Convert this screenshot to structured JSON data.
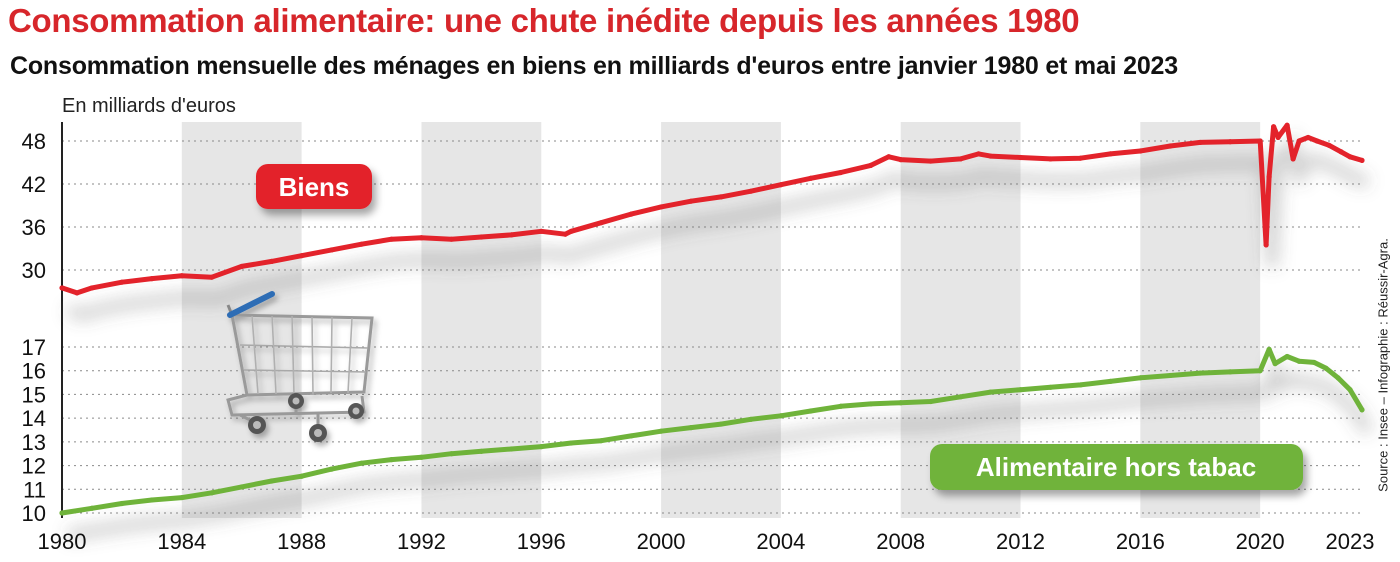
{
  "title": "Consommation alimentaire: une chute inédite depuis les années 1980",
  "subtitle": "Consommation mensuelle des ménages en biens en milliards d'euros entre janvier 1980 et mai 2023",
  "unit_label": "En milliards d'euros",
  "source": "Source : Insee – Infographie : Réussir-Agra.",
  "colors": {
    "biens": "#e3232b",
    "alimentaire": "#6fb33a",
    "title": "#d7262b",
    "band": "#e6e6e6"
  },
  "icons": {
    "cart": "shopping-cart-icon"
  },
  "chart_data": {
    "type": "line",
    "x_ticks": [
      "1980",
      "1984",
      "1988",
      "1992",
      "1996",
      "2000",
      "2004",
      "2008",
      "2012",
      "2016",
      "2020",
      "2023"
    ],
    "x_range": [
      1980,
      2023.4
    ],
    "panels": [
      {
        "name": "Biens",
        "y_ticks": [
          30,
          36,
          42,
          48
        ],
        "ylim": [
          26,
          51
        ],
        "series": [
          {
            "name": "Biens",
            "x": [
              1980.0,
              1980.5,
              1981,
              1982,
              1983,
              1984,
              1985,
              1986,
              1987,
              1988,
              1989,
              1990,
              1991,
              1992,
              1993,
              1994,
              1995,
              1996,
              1996.8,
              1997,
              1998,
              1999,
              2000,
              2001,
              2002,
              2003,
              2004,
              2005,
              2006,
              2007,
              2007.6,
              2008,
              2009,
              2010,
              2010.6,
              2011,
              2012,
              2013,
              2014,
              2015,
              2016,
              2017,
              2018,
              2019,
              2020.0,
              2020.2,
              2020.3,
              2020.45,
              2020.6,
              2020.9,
              2021.1,
              2021.3,
              2021.6,
              2021.9,
              2022.3,
              2022.7,
              2023.0,
              2023.4
            ],
            "values": [
              27.5,
              26.8,
              27.5,
              28.3,
              28.8,
              29.2,
              29.0,
              30.5,
              31.2,
              32.0,
              32.8,
              33.6,
              34.3,
              34.5,
              34.3,
              34.6,
              34.9,
              35.4,
              35.0,
              35.4,
              36.6,
              37.8,
              38.8,
              39.6,
              40.2,
              41.0,
              41.9,
              42.8,
              43.6,
              44.6,
              45.8,
              45.4,
              45.2,
              45.5,
              46.2,
              45.9,
              45.7,
              45.5,
              45.6,
              46.2,
              46.6,
              47.3,
              47.8,
              47.9,
              48.0,
              33.5,
              43.0,
              50.0,
              48.5,
              50.2,
              45.5,
              48.0,
              48.5,
              48.0,
              47.4,
              46.5,
              45.8,
              45.3
            ]
          }
        ]
      },
      {
        "name": "Alimentaire hors tabac",
        "y_ticks": [
          10,
          11,
          12,
          13,
          14,
          15,
          16,
          17
        ],
        "ylim": [
          10,
          18
        ],
        "series": [
          {
            "name": "Alimentaire hors tabac",
            "x": [
              1980.0,
              1981,
              1982,
              1983,
              1984,
              1985,
              1986,
              1987,
              1988,
              1989,
              1990,
              1991,
              1992,
              1993,
              1994,
              1995,
              1996,
              1997,
              1998,
              1999,
              2000,
              2001,
              2002,
              2003,
              2004,
              2005,
              2006,
              2007,
              2008,
              2009,
              2010,
              2011,
              2012,
              2013,
              2014,
              2015,
              2016,
              2017,
              2018,
              2019,
              2020.0,
              2020.3,
              2020.5,
              2020.9,
              2021.3,
              2021.8,
              2022.2,
              2022.6,
              2023.0,
              2023.4
            ],
            "values": [
              10.0,
              10.2,
              10.4,
              10.55,
              10.65,
              10.85,
              11.1,
              11.35,
              11.55,
              11.85,
              12.1,
              12.25,
              12.35,
              12.5,
              12.6,
              12.7,
              12.8,
              12.95,
              13.05,
              13.25,
              13.45,
              13.6,
              13.75,
              13.95,
              14.1,
              14.3,
              14.5,
              14.6,
              14.65,
              14.7,
              14.9,
              15.1,
              15.2,
              15.3,
              15.4,
              15.55,
              15.7,
              15.8,
              15.9,
              15.95,
              16.0,
              16.9,
              16.3,
              16.6,
              16.4,
              16.35,
              16.1,
              15.7,
              15.2,
              14.35
            ]
          }
        ]
      }
    ],
    "annotations": [
      "Biens",
      "Alimentaire hors tabac"
    ]
  }
}
